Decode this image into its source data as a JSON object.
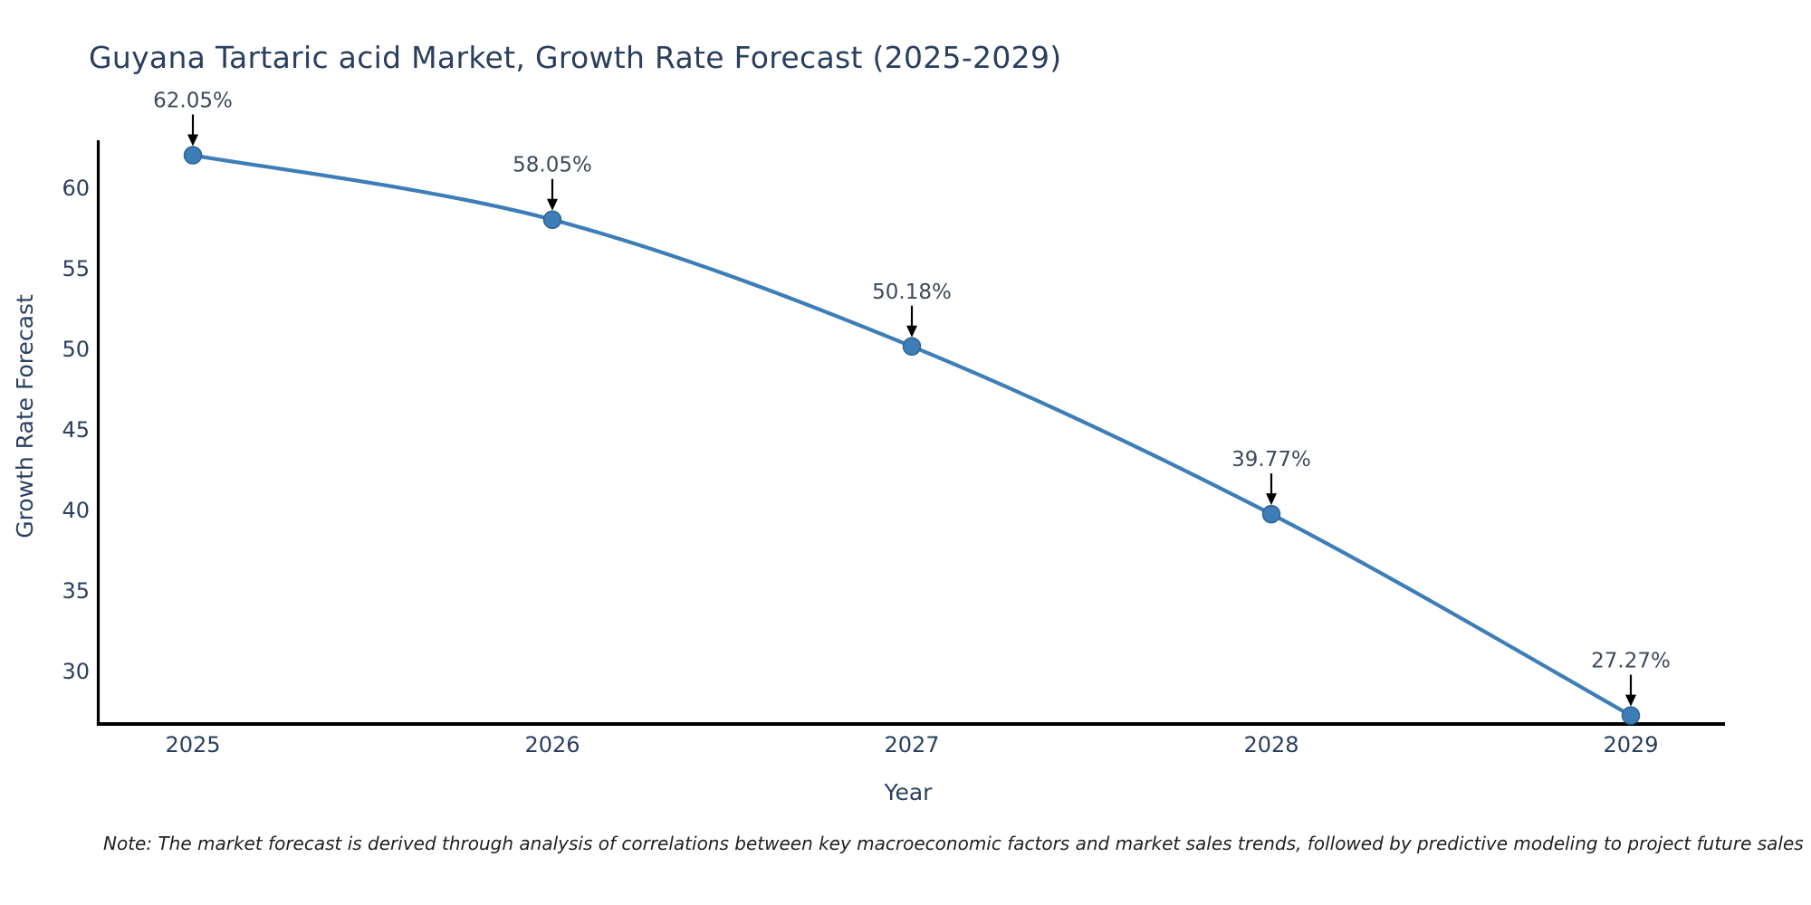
{
  "chart_data": {
    "type": "line",
    "title": "Guyana Tartaric acid Market, Growth Rate Forecast (2025-2029)",
    "xlabel": "Year",
    "ylabel": "Growth Rate Forecast",
    "x": [
      2025,
      2026,
      2027,
      2028,
      2029
    ],
    "series": [
      {
        "name": "Growth Rate Forecast",
        "values": [
          62.05,
          58.05,
          50.18,
          39.77,
          27.27
        ],
        "point_labels": [
          "62.05%",
          "58.05%",
          "50.18%",
          "39.77%",
          "27.27%"
        ]
      }
    ],
    "y_ticks": [
      30,
      35,
      40,
      45,
      50,
      55,
      60
    ],
    "ylim": [
      26.6,
      63.2
    ],
    "xlim": [
      2024.74,
      2029.26
    ],
    "grid": false,
    "legend_position": "none",
    "line_shape": "spline",
    "colors": {
      "line": "#3d7db8",
      "marker_fill": "#3d7db8",
      "marker_edge": "#2f648f",
      "axis_spine": "#000000",
      "text": "#2a3f5f",
      "annotation_text": "#3d4a5c",
      "annotation_arrow": "#000000",
      "background": "#ffffff"
    }
  },
  "footnote": "Note: The market forecast is derived through analysis of correlations between key macroeconomic factors and market sales trends, followed by predictive modeling to project future sales"
}
